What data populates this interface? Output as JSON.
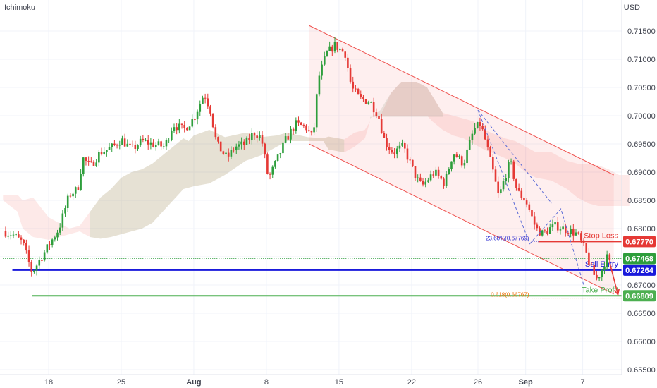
{
  "indicator": "Ichimoku",
  "currency": "USD",
  "colors": {
    "up": "#26a69a",
    "down": "#ef5350",
    "bull": "#2e9e3c",
    "bear": "#e53935",
    "blue": "#1a1adb",
    "green": "#4caf50",
    "grid": "#f0f3fa"
  },
  "chart_data": {
    "type": "candlestick",
    "ylim": [
      0.655,
      0.7175
    ],
    "price_ticks": [
      "0.71500",
      "0.71000",
      "0.70500",
      "0.70000",
      "0.69500",
      "0.69000",
      "0.68500",
      "0.68000",
      "0.67500",
      "0.67000",
      "0.66500",
      "0.66000",
      "0.65500"
    ],
    "x_ticks": [
      {
        "label": "18",
        "day": 0,
        "bold": false
      },
      {
        "label": "25",
        "day": 7,
        "bold": false
      },
      {
        "label": "Aug",
        "day": 14,
        "bold": true
      },
      {
        "label": "8",
        "day": 21,
        "bold": false
      },
      {
        "label": "15",
        "day": 28,
        "bold": false
      },
      {
        "label": "22",
        "day": 35,
        "bold": false
      },
      {
        "label": "26",
        "day": 41.4,
        "bold": false
      },
      {
        "label": "Sep",
        "day": 46,
        "bold": true
      },
      {
        "label": "7",
        "day": 51.5,
        "bold": false
      }
    ],
    "price_path": [
      [
        -4.4,
        0.6795
      ],
      [
        -3.5,
        0.679
      ],
      [
        -2.5,
        0.6775
      ],
      [
        -1.6,
        0.6722
      ],
      [
        -1,
        0.674
      ],
      [
        0,
        0.677
      ],
      [
        1,
        0.68
      ],
      [
        2,
        0.686
      ],
      [
        2.8,
        0.687
      ],
      [
        3.3,
        0.6925
      ],
      [
        4,
        0.691
      ],
      [
        5,
        0.6935
      ],
      [
        6.2,
        0.6945
      ],
      [
        7,
        0.6958
      ],
      [
        8,
        0.694
      ],
      [
        9,
        0.6955
      ],
      [
        10,
        0.695
      ],
      [
        11.2,
        0.6945
      ],
      [
        12,
        0.6985
      ],
      [
        13,
        0.6975
      ],
      [
        14,
        0.6995
      ],
      [
        15,
        0.704
      ],
      [
        15.6,
        0.701
      ],
      [
        16.2,
        0.695
      ],
      [
        17.2,
        0.6925
      ],
      [
        18,
        0.6945
      ],
      [
        19,
        0.695
      ],
      [
        19.8,
        0.697
      ],
      [
        20.5,
        0.6962
      ],
      [
        21.2,
        0.6888
      ],
      [
        22,
        0.692
      ],
      [
        22.8,
        0.6955
      ],
      [
        23.8,
        0.6985
      ],
      [
        24.8,
        0.698
      ],
      [
        25.5,
        0.696
      ],
      [
        26,
        0.7065
      ],
      [
        26.8,
        0.711
      ],
      [
        27.6,
        0.7125
      ],
      [
        28.6,
        0.711
      ],
      [
        29.2,
        0.705
      ],
      [
        30,
        0.703
      ],
      [
        31,
        0.7025
      ],
      [
        31.8,
        0.7
      ],
      [
        32.4,
        0.6955
      ],
      [
        33.2,
        0.6935
      ],
      [
        34.2,
        0.6945
      ],
      [
        35.5,
        0.6888
      ],
      [
        36,
        0.6875
      ],
      [
        37.2,
        0.69
      ],
      [
        38.2,
        0.688
      ],
      [
        39,
        0.6935
      ],
      [
        40,
        0.6915
      ],
      [
        41,
        0.6975
      ],
      [
        41.6,
        0.6985
      ],
      [
        42,
        0.6965
      ],
      [
        42.8,
        0.6905
      ],
      [
        43.4,
        0.6855
      ],
      [
        44.5,
        0.692
      ],
      [
        45.2,
        0.6865
      ],
      [
        46,
        0.685
      ],
      [
        47,
        0.68
      ],
      [
        47.7,
        0.679
      ],
      [
        48.3,
        0.68
      ],
      [
        49,
        0.6805
      ],
      [
        49.6,
        0.68
      ],
      [
        50.4,
        0.6795
      ],
      [
        51,
        0.679
      ],
      [
        51.8,
        0.6758
      ],
      [
        52.3,
        0.673
      ],
      [
        52.8,
        0.671
      ],
      [
        53.3,
        0.6725
      ],
      [
        53.8,
        0.675
      ],
      [
        54.2,
        0.6735
      ]
    ],
    "cloud": {
      "top": [
        [
          -4.4,
          0.686
        ],
        [
          -3,
          0.686
        ],
        [
          -2.5,
          0.685
        ],
        [
          -1.5,
          0.6855
        ],
        [
          0,
          0.682
        ],
        [
          1,
          0.681
        ],
        [
          2,
          0.68
        ],
        [
          3,
          0.6805
        ],
        [
          4,
          0.683
        ],
        [
          5,
          0.6855
        ],
        [
          6,
          0.687
        ],
        [
          7,
          0.689
        ],
        [
          8,
          0.69
        ],
        [
          9,
          0.6905
        ],
        [
          10,
          0.6915
        ],
        [
          11,
          0.693
        ],
        [
          12,
          0.6945
        ],
        [
          13,
          0.696
        ],
        [
          13.5,
          0.6955
        ],
        [
          14,
          0.6965
        ],
        [
          15.5,
          0.6975
        ],
        [
          17,
          0.6962
        ],
        [
          19,
          0.697
        ],
        [
          20.5,
          0.6962
        ],
        [
          22,
          0.6965
        ],
        [
          23,
          0.697
        ],
        [
          25,
          0.6962
        ],
        [
          26.5,
          0.696
        ],
        [
          27,
          0.6963
        ],
        [
          28.5,
          0.6958
        ],
        [
          29.5,
          0.697
        ],
        [
          30.5,
          0.6975
        ],
        [
          31,
          0.699
        ],
        [
          32,
          0.7
        ],
        [
          33,
          0.704
        ],
        [
          34,
          0.706
        ],
        [
          35.5,
          0.706
        ],
        [
          36.5,
          0.705
        ],
        [
          37,
          0.7035
        ],
        [
          38,
          0.7005
        ],
        [
          39,
          0.7
        ],
        [
          40,
          0.6995
        ],
        [
          41,
          0.699
        ],
        [
          42,
          0.6975
        ],
        [
          44,
          0.696
        ],
        [
          45,
          0.6955
        ],
        [
          46,
          0.6945
        ],
        [
          47,
          0.6935
        ],
        [
          48.5,
          0.6935
        ],
        [
          50,
          0.692
        ],
        [
          51,
          0.6915
        ],
        [
          52,
          0.6915
        ],
        [
          53,
          0.6912
        ],
        [
          54,
          0.6905
        ],
        [
          55,
          0.6895
        ],
        [
          56,
          0.6895
        ]
      ],
      "bottom": [
        [
          -4.4,
          0.685
        ],
        [
          -3,
          0.683
        ],
        [
          -2.5,
          0.68
        ],
        [
          -1.5,
          0.6785
        ],
        [
          0,
          0.678
        ],
        [
          1,
          0.6785
        ],
        [
          2,
          0.679
        ],
        [
          3,
          0.6795
        ],
        [
          4,
          0.6785
        ],
        [
          5,
          0.6782
        ],
        [
          6,
          0.6785
        ],
        [
          7,
          0.679
        ],
        [
          8,
          0.6795
        ],
        [
          9,
          0.68
        ],
        [
          10,
          0.681
        ],
        [
          11,
          0.683
        ],
        [
          12,
          0.685
        ],
        [
          13,
          0.687
        ],
        [
          14,
          0.6875
        ],
        [
          15.5,
          0.688
        ],
        [
          17,
          0.6895
        ],
        [
          19,
          0.692
        ],
        [
          20.5,
          0.693
        ],
        [
          22,
          0.6945
        ],
        [
          23,
          0.6955
        ],
        [
          25,
          0.6955
        ],
        [
          26.5,
          0.6955
        ],
        [
          27,
          0.694
        ],
        [
          28.5,
          0.6935
        ],
        [
          29.5,
          0.6945
        ],
        [
          30.5,
          0.696
        ],
        [
          31,
          0.699
        ],
        [
          32,
          0.7
        ],
        [
          33,
          0.7
        ],
        [
          34,
          0.7
        ],
        [
          35.5,
          0.7
        ],
        [
          36.5,
          0.7
        ],
        [
          37,
          0.699
        ],
        [
          38,
          0.6975
        ],
        [
          39,
          0.6965
        ],
        [
          40,
          0.696
        ],
        [
          41,
          0.695
        ],
        [
          42,
          0.694
        ],
        [
          44,
          0.6925
        ],
        [
          45,
          0.6915
        ],
        [
          46,
          0.69
        ],
        [
          47,
          0.689
        ],
        [
          48.5,
          0.6885
        ],
        [
          50,
          0.687
        ],
        [
          51,
          0.6855
        ],
        [
          52,
          0.6845
        ],
        [
          53,
          0.684
        ],
        [
          54,
          0.684
        ],
        [
          55,
          0.684
        ],
        [
          56,
          0.684
        ]
      ]
    },
    "channel": {
      "upper": [
        [
          25.1,
          0.716
        ],
        [
          54.5,
          0.6895
        ]
      ],
      "lower": [
        [
          25.1,
          0.695
        ],
        [
          54.5,
          0.6684
        ]
      ]
    },
    "zigzag": [
      [
        41.4,
        0.701
      ],
      [
        46.4,
        0.6773
      ],
      [
        49.4,
        0.6835
      ],
      [
        51.6,
        0.67
      ]
    ],
    "zigzag_guide": [
      [
        41.4,
        0.701
      ],
      [
        48.5,
        0.6845
      ]
    ],
    "levels": [
      {
        "name": "stop-loss",
        "value": 0.6777,
        "label": "Stop Loss",
        "badge": "0.67770",
        "color": "#e53935",
        "x_from": 47.2
      },
      {
        "name": "current-price",
        "value": 0.67468,
        "label": "",
        "badge": "0.67468",
        "color": "#2e9e3c",
        "x_from": -4.4
      },
      {
        "name": "sell-entry",
        "value": 0.67264,
        "label": "Sell Entry",
        "badge": "0.67264",
        "color": "#1a1adb",
        "x_from": -3.5
      },
      {
        "name": "take-profit",
        "value": 0.66809,
        "label": "Take Profit",
        "badge": "0.66809",
        "color": "#4caf50",
        "x_from": -1.6
      }
    ],
    "fib": [
      {
        "label": "23.60%(0.67769)",
        "value": 0.67769,
        "x_from": 46.6,
        "color": "#2b2bd0"
      },
      {
        "label": "0.618(0.66767)",
        "value": 0.66767,
        "x_from": 46.6,
        "color": "#ef6c00"
      }
    ],
    "arrow": {
      "from": [
        54.1,
        0.674
      ],
      "to": [
        54.9,
        0.6683
      ]
    }
  }
}
